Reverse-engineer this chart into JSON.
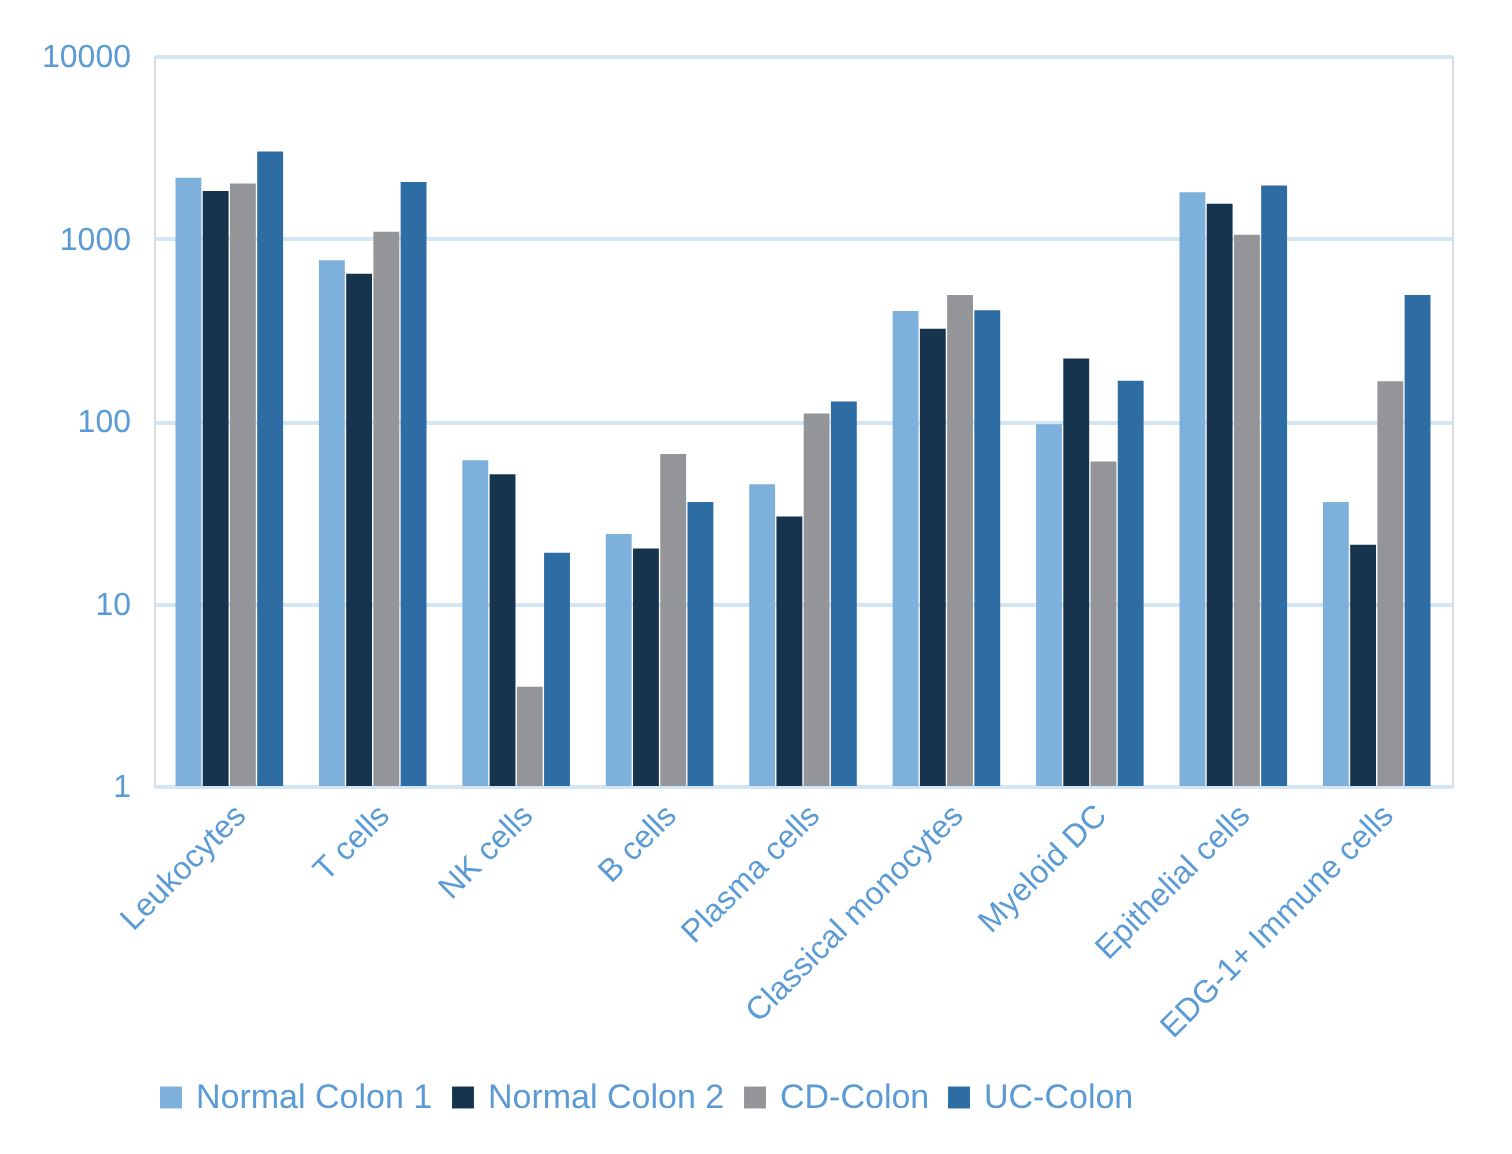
{
  "chart_data": {
    "type": "bar",
    "log": true,
    "grid": "y",
    "legend": "bottom",
    "categories": [
      "Leukocytes",
      "T cells",
      "NK cells",
      "B cells",
      "Plasma cells",
      "Classical monocytes",
      "Myeloid DC",
      "Epithelial cells",
      "EDG-1+ Immune cells"
    ],
    "ylim": [
      1,
      10000
    ],
    "yticks": [
      1,
      10,
      100,
      1000,
      10000
    ],
    "series": [
      {
        "name": "Normal Colon 1",
        "color": "#7eb0dc",
        "values": [
          2150,
          760,
          61,
          24,
          45,
          400,
          96,
          1790,
          36
        ]
      },
      {
        "name": "Normal Colon 2",
        "color": "#17344f",
        "values": [
          1820,
          640,
          51,
          20,
          30,
          320,
          220,
          1550,
          21
        ]
      },
      {
        "name": "CD-Colon",
        "color": "#939598",
        "values": [
          2000,
          1090,
          3.5,
          66,
          110,
          490,
          60,
          1050,
          165
        ]
      },
      {
        "name": "UC-Colon",
        "color": "#2e6ca4",
        "values": [
          3000,
          2040,
          19,
          36,
          128,
          405,
          166,
          1950,
          490
        ]
      }
    ]
  }
}
